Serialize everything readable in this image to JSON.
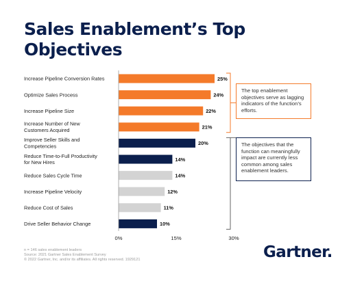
{
  "title": "Sales Enablement’s Top Objectives",
  "callouts": {
    "top": "The top enablement objectives serve as lagging indicators of the function’s efforts.",
    "bottom": "The objectives that the function can meaningfully impact are currently less common among sales enablement leaders."
  },
  "footer": {
    "n": "n = 146 sales enablement leaders",
    "source": "Source: 2021 Gartner Sales Enablement Survey",
    "copyright": "© 2022 Gartner, Inc. and/or its affiliates. All rights reserved. 1929121"
  },
  "logo": "Gartner",
  "colors": {
    "orange": "#f47a2a",
    "navy": "#0b1f4d",
    "gray": "#d3d3d3"
  },
  "chart_data": {
    "type": "bar",
    "orientation": "horizontal",
    "categories": [
      [
        "Increase Pipeline Conversion Rates"
      ],
      [
        "Optimize Sales Process"
      ],
      [
        "Increase Pipeline Size"
      ],
      [
        "Increase Number of New",
        "Customers Acquired"
      ],
      [
        "Improve Seller Skills and",
        "Competencies"
      ],
      [
        "Reduce Time-to-Full Productivity",
        "for New Hires"
      ],
      [
        "Reduce Sales Cycle Time"
      ],
      [
        "Increase Pipeline Velocity"
      ],
      [
        "Reduce Cost of Sales"
      ],
      [
        "Drive Seller Behavior Change"
      ]
    ],
    "values": [
      25,
      24,
      22,
      21,
      20,
      14,
      14,
      12,
      11,
      10
    ],
    "value_labels": [
      "25%",
      "24%",
      "22%",
      "21%",
      "20%",
      "14%",
      "14%",
      "12%",
      "11%",
      "10%"
    ],
    "bar_colors": [
      "orange",
      "orange",
      "orange",
      "orange",
      "navy",
      "navy",
      "gray",
      "gray",
      "gray",
      "navy"
    ],
    "xlim": [
      0,
      30
    ],
    "xticks": [
      0,
      15,
      30
    ],
    "xtick_labels": [
      "0%",
      "15%",
      "30%"
    ],
    "grid": false
  }
}
